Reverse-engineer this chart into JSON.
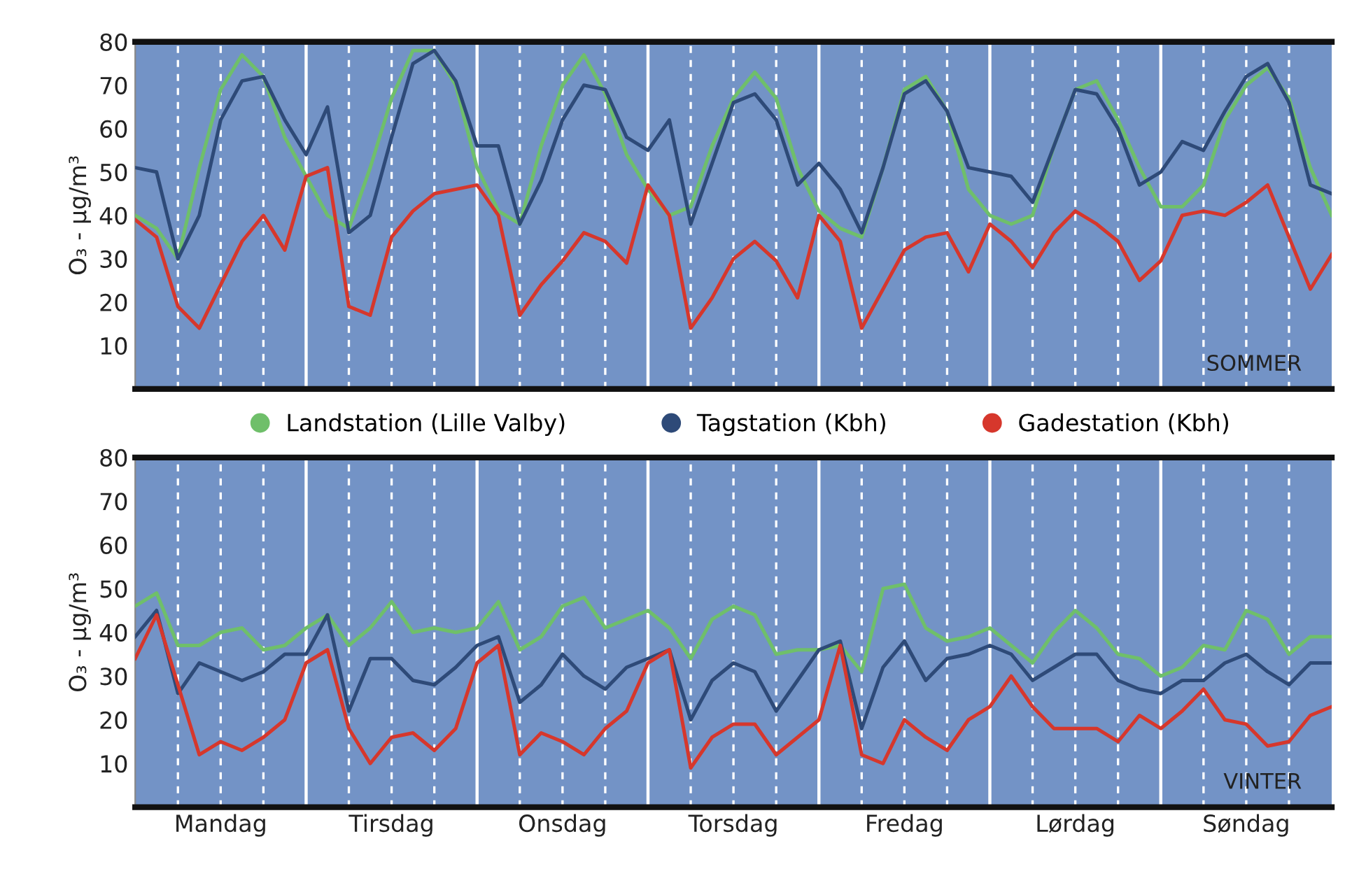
{
  "chart_data": [
    {
      "type": "line",
      "ylabel": "O₃ - µg/m³",
      "annotations": [
        "SOMMER"
      ],
      "legend": "bottom",
      "categories": [
        null,
        null,
        null,
        null,
        null,
        null,
        null,
        null,
        null,
        null,
        null,
        null,
        null,
        null,
        null,
        null,
        null,
        null,
        null,
        null,
        null,
        null,
        null,
        null,
        null,
        null,
        null,
        null,
        null,
        null,
        null,
        null,
        null,
        null,
        null,
        null,
        null,
        null,
        null,
        null,
        null,
        null,
        null,
        null,
        null,
        null,
        null,
        null,
        null,
        null,
        null,
        null,
        null,
        null,
        null,
        null,
        null
      ],
      "ylim": [
        0,
        80
      ],
      "yticks": [
        10,
        20,
        30,
        40,
        50,
        60,
        70,
        80
      ],
      "grid": "x",
      "marker": "none",
      "line_style": "solid",
      "series": [
        {
          "name": "Landstation (Lille Valby)",
          "color": "#6fbf6a",
          "values": [
            40,
            37,
            30,
            51,
            69,
            77,
            72,
            58,
            49,
            40,
            37,
            51,
            67,
            78,
            78,
            70,
            51,
            41,
            38,
            56,
            70,
            77,
            68,
            54,
            46,
            40,
            42,
            56,
            67,
            73,
            67,
            51,
            41,
            37,
            35,
            51,
            69,
            72,
            64,
            46,
            40,
            38,
            40,
            56,
            69,
            71,
            62,
            51,
            42,
            42,
            47,
            62,
            70,
            74,
            67,
            51,
            40
          ]
        },
        {
          "name": "Tagstation (Kbh)",
          "color": "#2e4a78",
          "values": [
            51,
            50,
            30,
            40,
            62,
            71,
            72,
            62,
            54,
            65,
            36,
            40,
            58,
            75,
            78,
            71,
            56,
            56,
            38,
            48,
            62,
            70,
            69,
            58,
            55,
            62,
            38,
            52,
            66,
            68,
            62,
            47,
            52,
            46,
            36,
            51,
            68,
            71,
            64,
            51,
            50,
            49,
            43,
            56,
            69,
            68,
            60,
            47,
            50,
            57,
            55,
            64,
            72,
            75,
            66,
            47,
            45
          ]
        },
        {
          "name": "Gadestation (Kbh)",
          "color": "#d6372c",
          "values": [
            39,
            35,
            19,
            14,
            24,
            34,
            40,
            32,
            49,
            51,
            19,
            17,
            35,
            41,
            45,
            46,
            47,
            40,
            17,
            24,
            29.5,
            36,
            34,
            29,
            47,
            40,
            14,
            21,
            30,
            34,
            29.5,
            21,
            40,
            34,
            14,
            23,
            32,
            35,
            36,
            27,
            38,
            34,
            28,
            36,
            41,
            38,
            34,
            25,
            29.5,
            40,
            41,
            40,
            43,
            47,
            35,
            23,
            31
          ]
        }
      ]
    },
    {
      "type": "line",
      "ylabel": "O₃ - µg/m³",
      "annotations": [
        "VINTER"
      ],
      "categories": [
        null,
        null,
        null,
        null,
        "Mandag",
        null,
        null,
        null,
        null,
        null,
        null,
        null,
        "Tirsdag",
        null,
        null,
        null,
        null,
        null,
        null,
        null,
        "Onsdag",
        null,
        null,
        null,
        null,
        null,
        null,
        null,
        "Torsdag",
        null,
        null,
        null,
        null,
        null,
        null,
        null,
        "Fredag",
        null,
        null,
        null,
        null,
        null,
        null,
        null,
        "Lørdag",
        null,
        null,
        null,
        null,
        null,
        null,
        null,
        "Søndag",
        null,
        null,
        null,
        null
      ],
      "ylim": [
        0,
        80
      ],
      "yticks": [
        10,
        20,
        30,
        40,
        50,
        60,
        70,
        80
      ],
      "grid": "x",
      "marker": "none",
      "line_style": "solid",
      "series": [
        {
          "color": "#6fbf6a",
          "values": [
            46,
            49,
            37,
            37,
            40,
            41,
            36,
            37,
            41,
            44,
            37,
            41,
            47,
            40,
            41,
            40,
            41,
            47,
            36,
            39,
            46,
            48,
            41,
            43,
            45,
            41,
            34,
            43,
            46,
            44,
            35,
            36,
            36,
            37,
            31,
            50,
            51,
            41,
            38,
            39,
            41,
            37,
            33,
            40,
            45,
            41,
            35,
            34,
            30,
            32,
            37,
            36,
            45,
            43,
            35,
            39,
            39
          ]
        },
        {
          "color": "#2e4a78",
          "values": [
            39,
            45,
            26,
            33,
            31,
            29,
            31,
            35,
            35,
            44,
            22,
            34,
            34,
            29,
            28,
            32,
            37,
            39,
            24,
            28,
            35,
            30,
            27,
            32,
            34,
            36,
            20,
            29,
            33,
            31,
            22,
            29,
            36,
            38,
            18,
            32,
            38,
            29,
            34,
            35,
            37,
            35,
            29,
            32,
            35,
            35,
            29,
            27,
            26,
            29,
            29,
            33,
            35,
            31,
            28,
            33,
            33
          ]
        },
        {
          "color": "#d6372c",
          "values": [
            34,
            44,
            28,
            12,
            15,
            13,
            16,
            20,
            33,
            36,
            18,
            10,
            16,
            17,
            13,
            18,
            33,
            37,
            12,
            17,
            15,
            12,
            18,
            22,
            33,
            36,
            9,
            16,
            19,
            19,
            12,
            16,
            20,
            37,
            12,
            10,
            20,
            16,
            13,
            20,
            23,
            30,
            23,
            18,
            18,
            18,
            15,
            21,
            18,
            22,
            27,
            20,
            19,
            14,
            15,
            21,
            23
          ]
        }
      ]
    }
  ]
}
